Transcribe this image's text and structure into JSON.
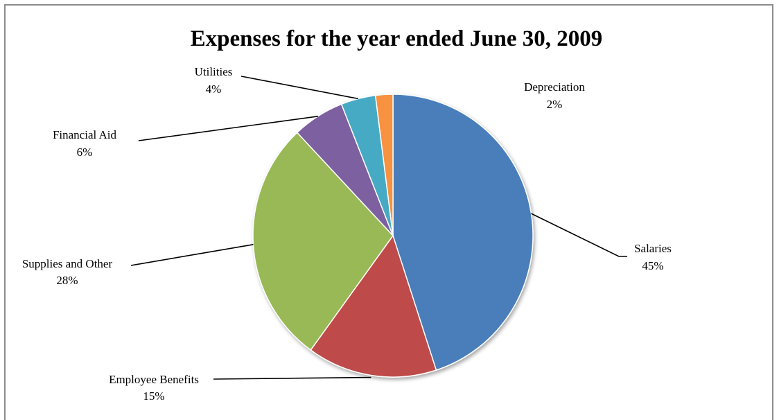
{
  "chart_data": {
    "type": "pie",
    "title": "Expenses for the year ended June 30, 2009",
    "slices": [
      {
        "label": "Salaries",
        "value": 45,
        "percent_label": "45%",
        "color": "#4a7ebb"
      },
      {
        "label": "Employee Benefits",
        "value": 15,
        "percent_label": "15%",
        "color": "#be4b48"
      },
      {
        "label": "Supplies and Other",
        "value": 28,
        "percent_label": "28%",
        "color": "#98b954"
      },
      {
        "label": "Financial Aid",
        "value": 6,
        "percent_label": "6%",
        "color": "#7d60a0"
      },
      {
        "label": "Utilities",
        "value": 4,
        "percent_label": "4%",
        "color": "#46aac5"
      },
      {
        "label": "Depreciation",
        "value": 2,
        "percent_label": "2%",
        "color": "#f69240"
      }
    ],
    "start_position": "top",
    "direction": "clockwise",
    "legend": "none",
    "data_labels": "outside-with-leader-lines"
  }
}
